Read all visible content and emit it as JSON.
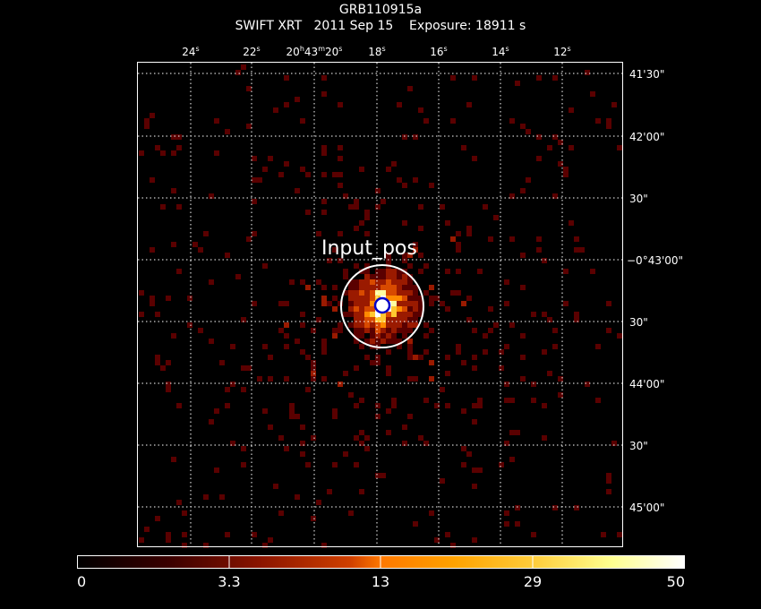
{
  "header": {
    "target": "GRB110915a",
    "instrument_line": "SWIFT XRT   2011 Sep 15    Exposure: 18911 s"
  },
  "image": {
    "colormap": [
      "#000000",
      "#5a0000",
      "#9a1a00",
      "#d84a00",
      "#ff8a00",
      "#ffc830",
      "#ffffa0",
      "#ffffff"
    ],
    "grid_color": "#ffffff",
    "ra_ticks": [
      {
        "label": "24",
        "sup": "s"
      },
      {
        "label": "22",
        "sup": "s"
      },
      {
        "label": "20",
        "sup": "h",
        "label2": "43",
        "sup2": "m",
        "label3": "20",
        "sup3": "s"
      },
      {
        "label": "18",
        "sup": "s"
      },
      {
        "label": "16",
        "sup": "s"
      },
      {
        "label": "14",
        "sup": "s"
      },
      {
        "label": "12",
        "sup": "s"
      }
    ],
    "dec_ticks": [
      "41'30\"",
      "42'00\"",
      "30\"",
      "−0°43'00\"",
      "30\"",
      "44'00\"",
      "30\"",
      "45'00\""
    ],
    "annotation": "Input_pos"
  },
  "colorbar": {
    "ticks": [
      "0",
      "3.3",
      "13",
      "29",
      "50"
    ]
  }
}
